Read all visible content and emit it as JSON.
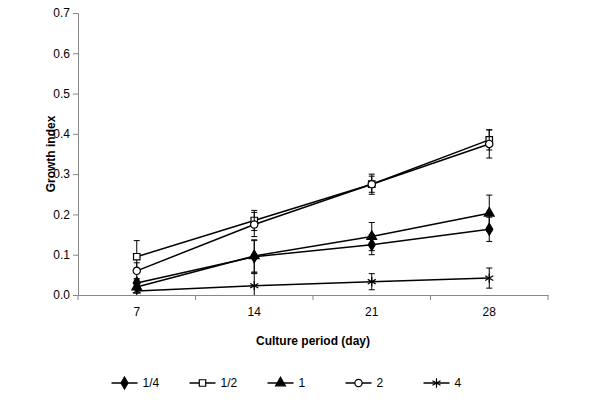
{
  "chart_data": {
    "type": "line",
    "x_label": "Culture period (day)",
    "y_label": "Growth index",
    "categories": [
      "7",
      "14",
      "21",
      "28"
    ],
    "ylim": [
      0,
      0.7
    ],
    "yticks": [
      {
        "value": 0,
        "label": "0.0"
      },
      0.1,
      0.2,
      0.3,
      0.4,
      0.5,
      0.6,
      0.7
    ],
    "grid": false,
    "legend": "bottom",
    "series": [
      {
        "name": "1/4",
        "color": "#000000",
        "marker": "diamond",
        "values": [
          0.03,
          0.095,
          0.125,
          0.163
        ],
        "errors": [
          0.01,
          0.04,
          0.025,
          0.03
        ]
      },
      {
        "name": "1/2",
        "color": "#000000",
        "marker": "square-open",
        "values": [
          0.095,
          0.185,
          0.275,
          0.385
        ],
        "errors": [
          0.04,
          0.025,
          0.025,
          0.025
        ]
      },
      {
        "name": "1",
        "color": "#000000",
        "marker": "triangle",
        "values": [
          0.02,
          0.097,
          0.145,
          0.203
        ],
        "errors": [
          0.015,
          0.04,
          0.035,
          0.045
        ]
      },
      {
        "name": "2",
        "color": "#000000",
        "marker": "circle-open",
        "values": [
          0.06,
          0.175,
          0.275,
          0.375
        ],
        "errors": [
          0.02,
          0.03,
          0.02,
          0.035
        ]
      },
      {
        "name": "4",
        "color": "#000000",
        "marker": "asterisk",
        "values": [
          0.01,
          0.023,
          0.033,
          0.042
        ],
        "errors": [
          0.005,
          0.03,
          0.02,
          0.025
        ]
      }
    ]
  }
}
